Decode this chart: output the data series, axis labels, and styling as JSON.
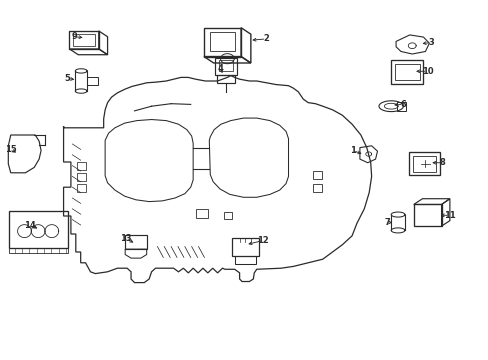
{
  "background_color": "#ffffff",
  "line_color": "#2a2a2a",
  "lw": 0.8
}
